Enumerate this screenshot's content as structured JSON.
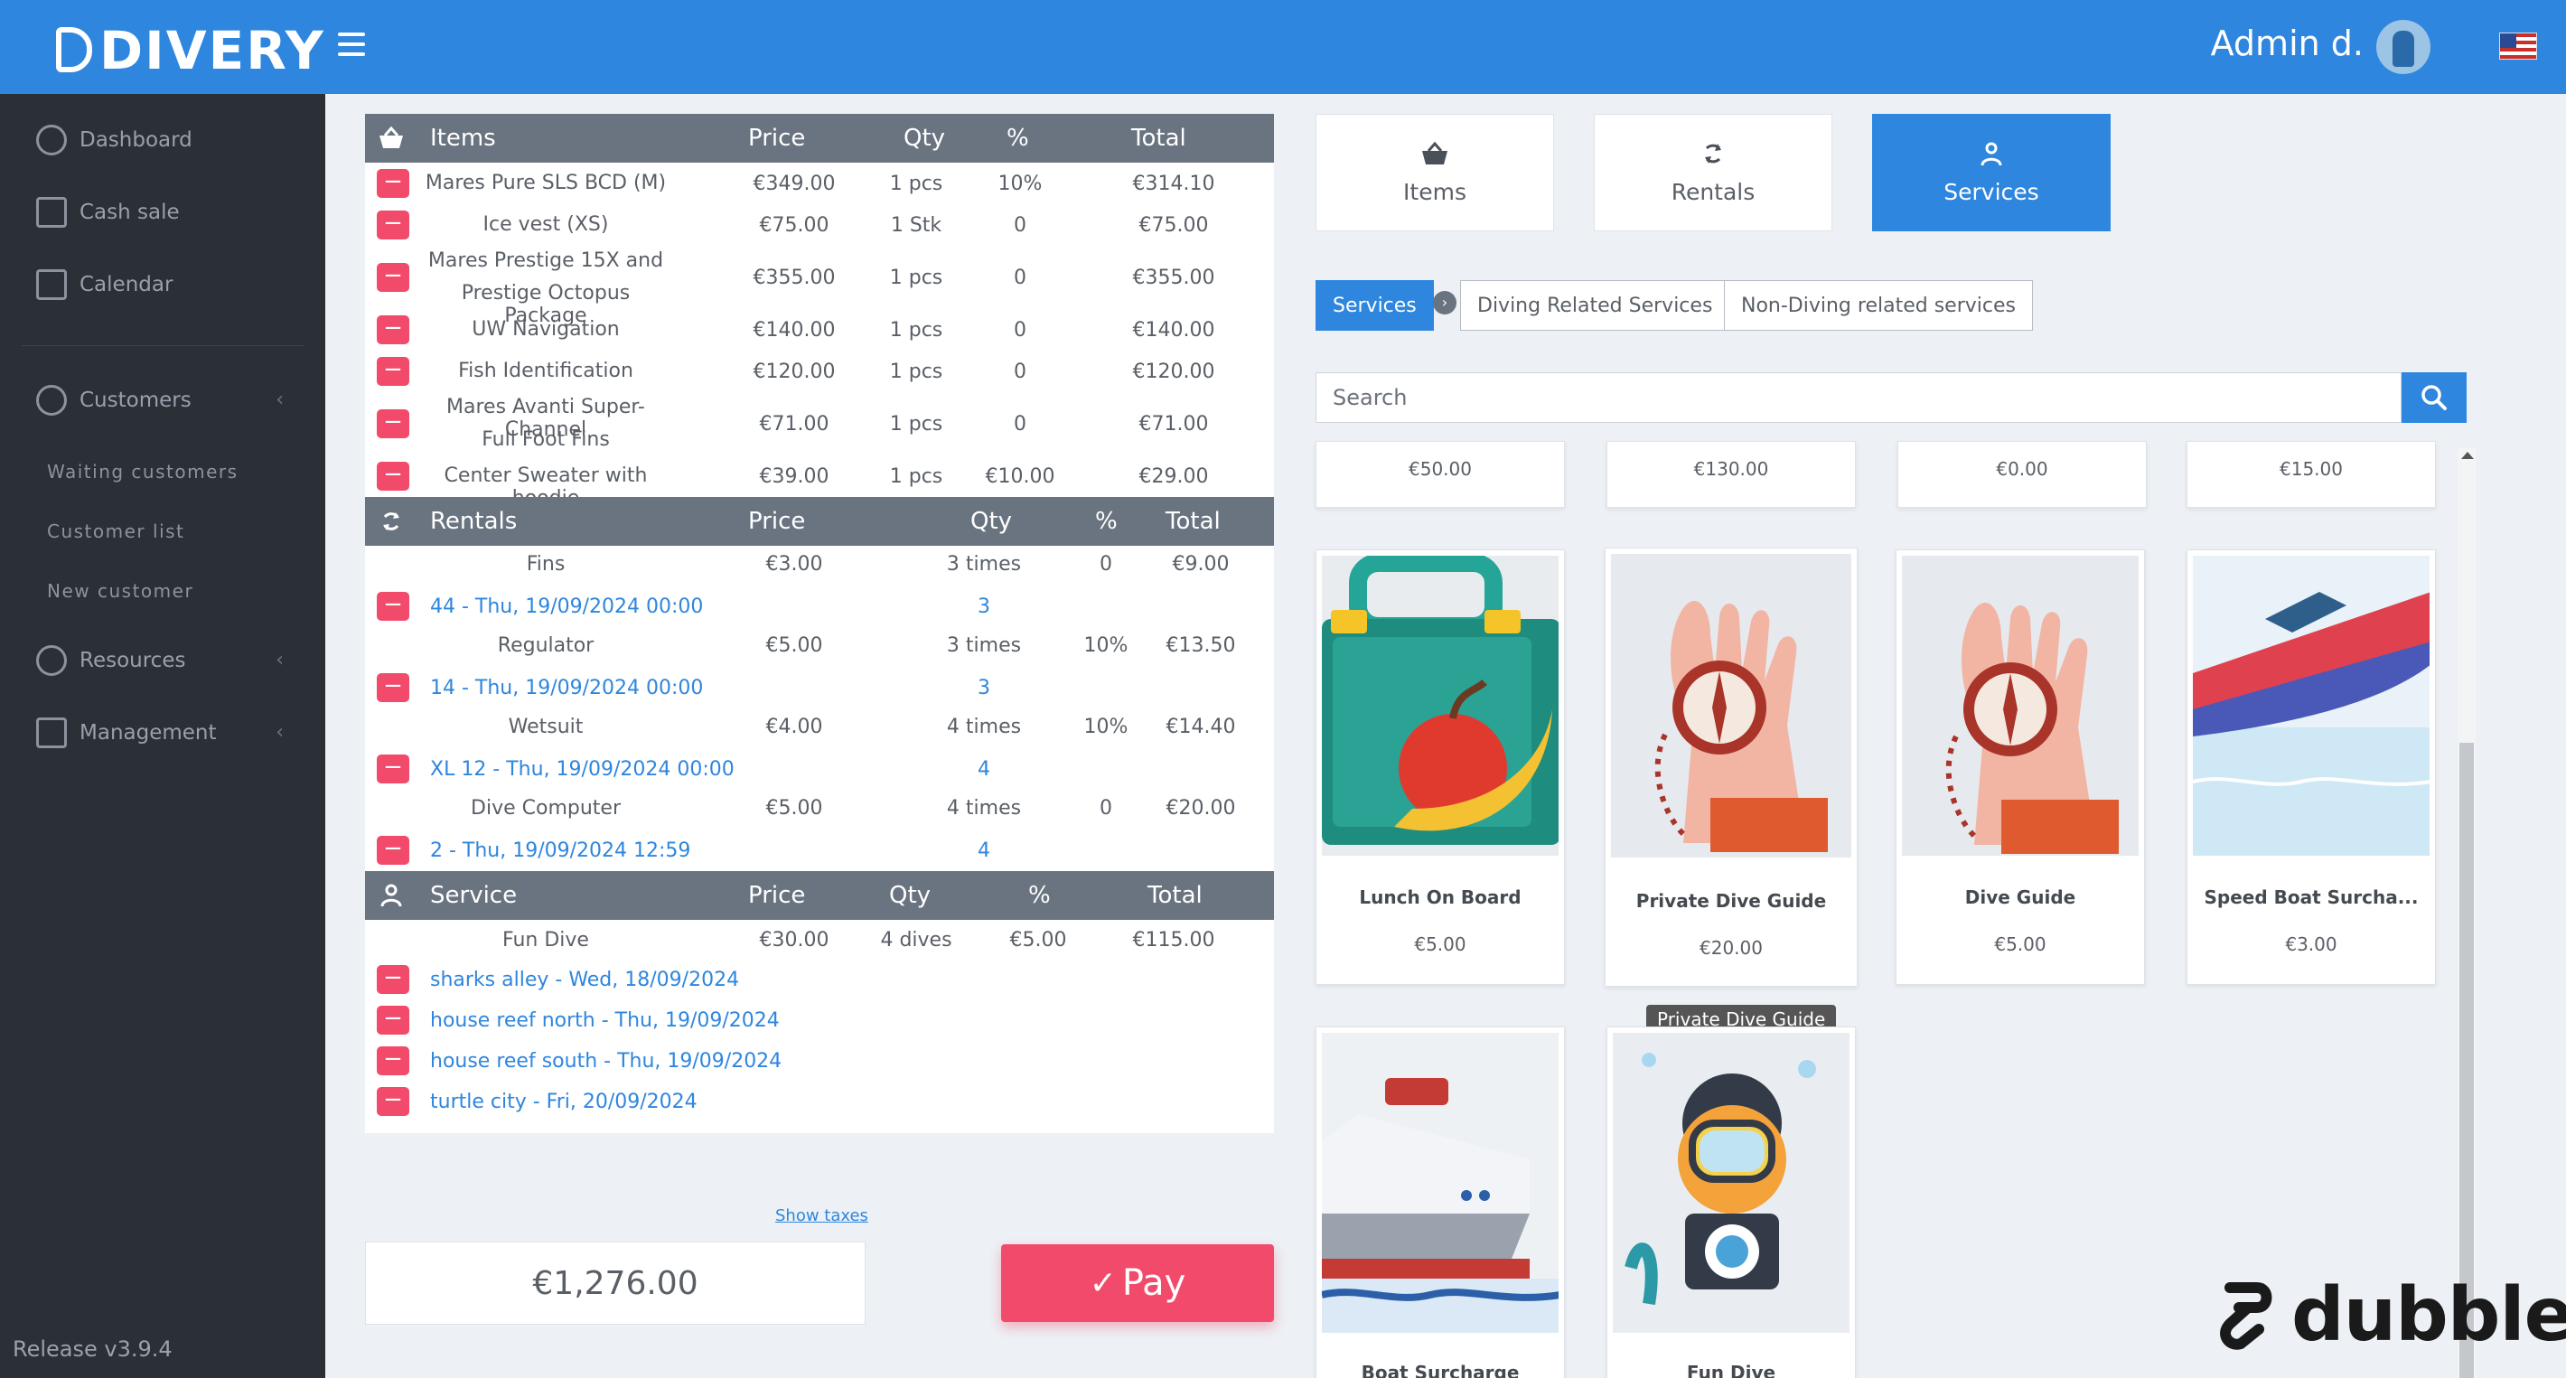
{
  "topbar": {
    "logo": "DIVERY",
    "admin_name": "Admin d."
  },
  "sidebar": {
    "items": [
      {
        "label": "Dashboard"
      },
      {
        "label": "Cash sale"
      },
      {
        "label": "Calendar"
      },
      {
        "label": "Customers"
      },
      {
        "label": "Resources"
      },
      {
        "label": "Management"
      }
    ],
    "customers_sub": [
      "Waiting customers",
      "Customer list",
      "New customer"
    ],
    "release": "Release v3.9.4"
  },
  "cart": {
    "items_header": {
      "title": "Items",
      "price": "Price",
      "qty": "Qty",
      "pct": "%",
      "total": "Total"
    },
    "items": [
      {
        "name": "Mares Pure SLS BCD (M)",
        "price": "€349.00",
        "qty": "1 pcs",
        "pct": "10%",
        "total": "€314.10"
      },
      {
        "name": "Ice vest (XS)",
        "price": "€75.00",
        "qty": "1 Stk",
        "pct": "0",
        "total": "€75.00"
      },
      {
        "name": "Mares Prestige 15X and",
        "name2": "Prestige Octopus Package",
        "price": "€355.00",
        "qty": "1 pcs",
        "pct": "0",
        "total": "€355.00"
      },
      {
        "name": "UW Navigation",
        "price": "€140.00",
        "qty": "1 pcs",
        "pct": "0",
        "total": "€140.00"
      },
      {
        "name": "Fish Identification",
        "price": "€120.00",
        "qty": "1 pcs",
        "pct": "0",
        "total": "€120.00"
      },
      {
        "name": "Mares Avanti Super-Channel",
        "name2": "Full Foot Fins",
        "price": "€71.00",
        "qty": "1 pcs",
        "pct": "0",
        "total": "€71.00"
      },
      {
        "name": "Center Sweater with hoodie",
        "price": "€39.00",
        "qty": "1 pcs",
        "pct": "€10.00",
        "total": "€29.00"
      }
    ],
    "rentals_header": {
      "title": "Rentals",
      "price": "Price",
      "qty": "Qty",
      "pct": "%",
      "total": "Total"
    },
    "rentals": [
      {
        "name": "Fins",
        "price": "€3.00",
        "qty": "3 times",
        "pct": "0",
        "total": "€9.00",
        "detail": "44 - Thu, 19/09/2024 00:00",
        "count": "3"
      },
      {
        "name": "Regulator",
        "price": "€5.00",
        "qty": "3 times",
        "pct": "10%",
        "total": "€13.50",
        "detail": "14 - Thu, 19/09/2024 00:00",
        "count": "3"
      },
      {
        "name": "Wetsuit",
        "price": "€4.00",
        "qty": "4 times",
        "pct": "10%",
        "total": "€14.40",
        "detail": "XL 12 - Thu, 19/09/2024 00:00",
        "count": "4"
      },
      {
        "name": "Dive Computer",
        "price": "€5.00",
        "qty": "4 times",
        "pct": "0",
        "total": "€20.00",
        "detail": "2 - Thu, 19/09/2024 12:59",
        "count": "4"
      }
    ],
    "service_header": {
      "title": "Service",
      "price": "Price",
      "qty": "Qty",
      "pct": "%",
      "total": "Total"
    },
    "service": {
      "name": "Fun Dive",
      "price": "€30.00",
      "qty": "4 dives",
      "pct": "€5.00",
      "total": "€115.00"
    },
    "service_dives": [
      "sharks alley - Wed, 18/09/2024",
      "house reef north - Thu, 19/09/2024",
      "house reef south - Thu, 19/09/2024",
      "turtle city - Fri, 20/09/2024"
    ],
    "show_taxes": "Show taxes",
    "grand_total": "€1,276.00",
    "pay_label": "Pay"
  },
  "categories": [
    "Items",
    "Rentals",
    "Services"
  ],
  "filters": [
    "Services",
    "Diving Related Services",
    "Non-Diving related services"
  ],
  "search": {
    "placeholder": "Search"
  },
  "top_prices": [
    "€50.00",
    "€130.00",
    "€0.00",
    "€15.00"
  ],
  "products": [
    {
      "name": "Lunch On Board",
      "price": "€5.00"
    },
    {
      "name": "Private Dive Guide",
      "price": "€20.00"
    },
    {
      "name": "Dive Guide",
      "price": "€5.00"
    },
    {
      "name": "Speed Boat Surcha...",
      "price": "€3.00"
    },
    {
      "name": "Boat Surcharge",
      "price": ""
    },
    {
      "name": "Fun Dive",
      "price": ""
    }
  ],
  "tooltip": "Private Dive Guide",
  "watermark": "dubble"
}
